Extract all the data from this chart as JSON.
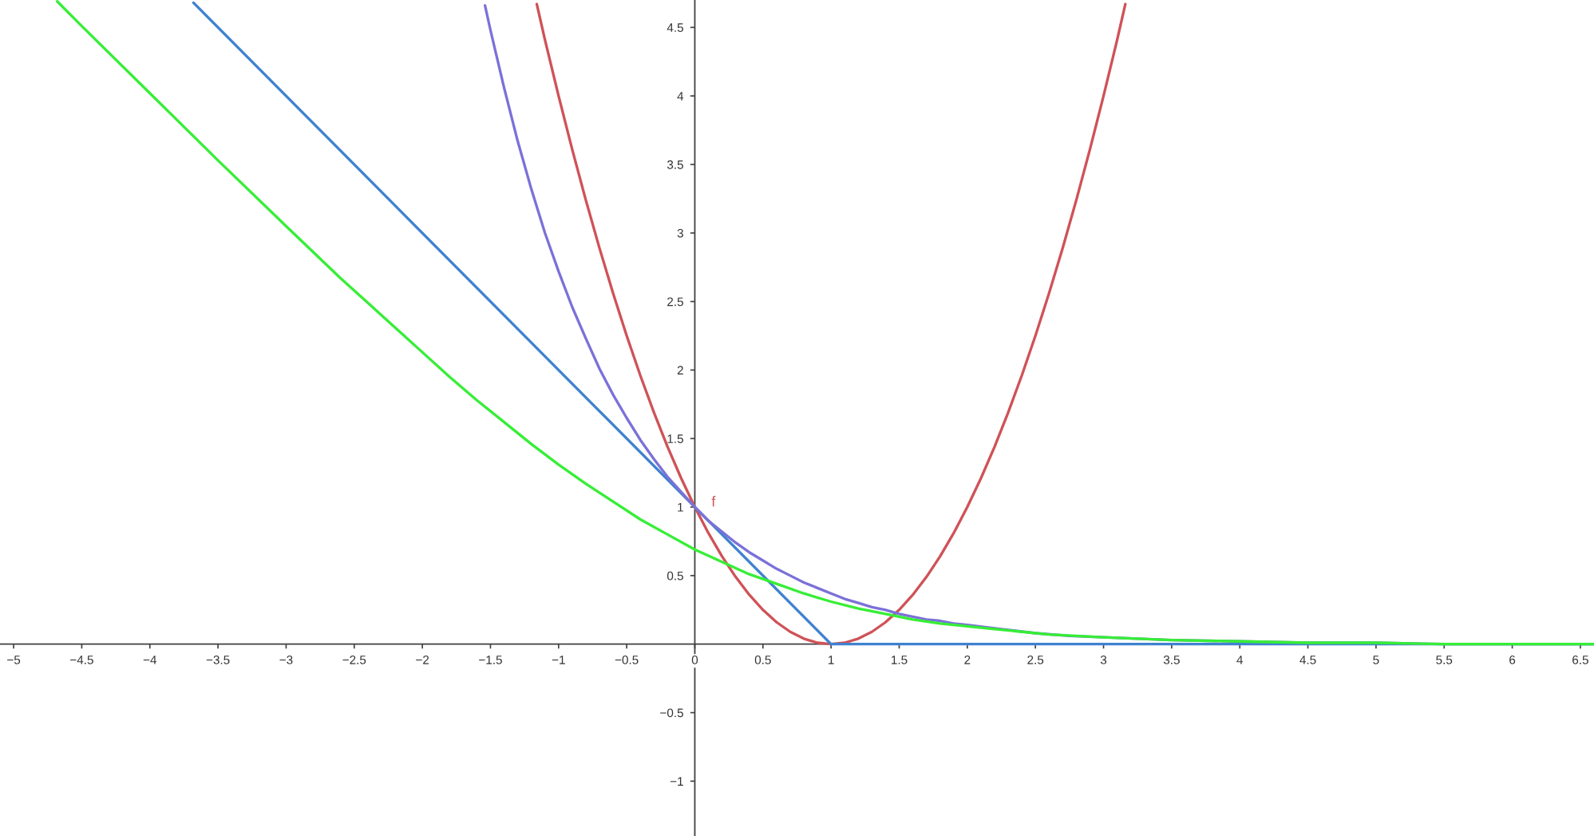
{
  "chart_data": {
    "type": "line",
    "xlim": [
      -5.1,
      6.6
    ],
    "ylim": [
      -1.4,
      4.7
    ],
    "xticks": [
      {
        "value": -5,
        "label": "−5"
      },
      {
        "value": -4.5,
        "label": "−4.5"
      },
      {
        "value": -4,
        "label": "−4"
      },
      {
        "value": -3.5,
        "label": "−3.5"
      },
      {
        "value": -3,
        "label": "−3"
      },
      {
        "value": -2.5,
        "label": "−2.5"
      },
      {
        "value": -2,
        "label": "−2"
      },
      {
        "value": -1.5,
        "label": "−1.5"
      },
      {
        "value": -1,
        "label": "−1"
      },
      {
        "value": -0.5,
        "label": "−0.5"
      },
      0,
      0.5,
      1,
      1.5,
      2,
      2.5,
      3,
      3.5,
      4,
      4.5,
      5,
      5.5,
      6,
      6.5
    ],
    "yticks": [
      {
        "value": -1,
        "label": "−1"
      },
      {
        "value": -0.5,
        "label": "−0.5"
      },
      0.5,
      1,
      1.5,
      2,
      2.5,
      3,
      3.5,
      4,
      4.5
    ],
    "marker": "none",
    "line_style": "solid",
    "series": [
      {
        "name": "f",
        "color": "#cf5257",
        "x": [
          -1.16,
          -1.1,
          -1.0,
          -0.9,
          -0.8,
          -0.7,
          -0.6,
          -0.5,
          -0.4,
          -0.3,
          -0.2,
          -0.1,
          0,
          0.1,
          0.2,
          0.3,
          0.4,
          0.5,
          0.6,
          0.7,
          0.8,
          0.9,
          1.0,
          1.1,
          1.2,
          1.3,
          1.4,
          1.5,
          1.6,
          1.7,
          1.8,
          1.9,
          2.0,
          2.1,
          2.2,
          2.3,
          2.4,
          2.5,
          2.6,
          2.7,
          2.8,
          2.9,
          3.0,
          3.1,
          3.16
        ],
        "values": [
          4.67,
          4.41,
          4,
          3.61,
          3.24,
          2.89,
          2.56,
          2.25,
          1.96,
          1.69,
          1.44,
          1.21,
          1,
          0.81,
          0.64,
          0.49,
          0.36,
          0.25,
          0.16,
          0.09,
          0.04,
          0.01,
          0,
          0.01,
          0.04,
          0.09,
          0.16,
          0.25,
          0.36,
          0.49,
          0.64,
          0.81,
          1,
          1.21,
          1.44,
          1.69,
          1.96,
          2.25,
          2.56,
          2.89,
          3.24,
          3.61,
          4,
          4.41,
          4.67
        ]
      },
      {
        "color": "#3f82d0",
        "x": [
          -3.68,
          1,
          6.6
        ],
        "values": [
          4.68,
          0,
          0
        ]
      },
      {
        "color": "#7b71d8",
        "x": [
          -1.54,
          -1.5,
          -1.4,
          -1.3,
          -1.2,
          -1.1,
          -1.0,
          -0.9,
          -0.8,
          -0.7,
          -0.6,
          -0.5,
          -0.4,
          -0.3,
          -0.2,
          -0.1,
          0,
          0.1,
          0.2,
          0.3,
          0.4,
          0.5,
          0.6,
          0.7,
          0.8,
          0.9,
          1.0,
          1.1,
          1.2,
          1.3,
          1.4,
          1.5,
          1.6,
          1.7,
          1.8,
          1.9,
          2.0,
          2.25,
          2.5,
          2.75,
          3.0,
          3.5,
          4.0,
          4.5,
          5.0,
          5.5,
          6.0,
          6.6
        ],
        "values": [
          4.66,
          4.48,
          4.06,
          3.67,
          3.32,
          3.0,
          2.72,
          2.46,
          2.23,
          2.01,
          1.82,
          1.65,
          1.49,
          1.35,
          1.22,
          1.11,
          1,
          0.9,
          0.82,
          0.74,
          0.67,
          0.61,
          0.55,
          0.5,
          0.45,
          0.41,
          0.37,
          0.33,
          0.3,
          0.27,
          0.25,
          0.22,
          0.2,
          0.18,
          0.17,
          0.15,
          0.14,
          0.11,
          0.08,
          0.06,
          0.05,
          0.03,
          0.02,
          0.01,
          0.01,
          0.0,
          0.0,
          0.0
        ]
      },
      {
        "color": "#36ee36",
        "x": [
          -4.68,
          -4.5,
          -4.0,
          -3.5,
          -3.0,
          -2.6,
          -2.4,
          -2.2,
          -2.0,
          -1.8,
          -1.6,
          -1.4,
          -1.2,
          -1.0,
          -0.8,
          -0.6,
          -0.4,
          -0.2,
          0,
          0.2,
          0.4,
          0.6,
          0.8,
          1.0,
          1.2,
          1.4,
          1.6,
          1.8,
          2.0,
          2.2,
          2.4,
          2.6,
          3.0,
          3.5,
          4.0,
          4.5,
          5.0,
          5.5,
          6.0,
          6.6
        ],
        "values": [
          4.69,
          4.51,
          4.02,
          3.53,
          3.05,
          2.67,
          2.49,
          2.31,
          2.13,
          1.95,
          1.78,
          1.62,
          1.46,
          1.31,
          1.17,
          1.04,
          0.91,
          0.8,
          0.69,
          0.6,
          0.51,
          0.44,
          0.37,
          0.31,
          0.26,
          0.22,
          0.18,
          0.15,
          0.13,
          0.11,
          0.09,
          0.07,
          0.05,
          0.03,
          0.02,
          0.01,
          0.01,
          0.0,
          0.0,
          0.0
        ]
      }
    ]
  }
}
